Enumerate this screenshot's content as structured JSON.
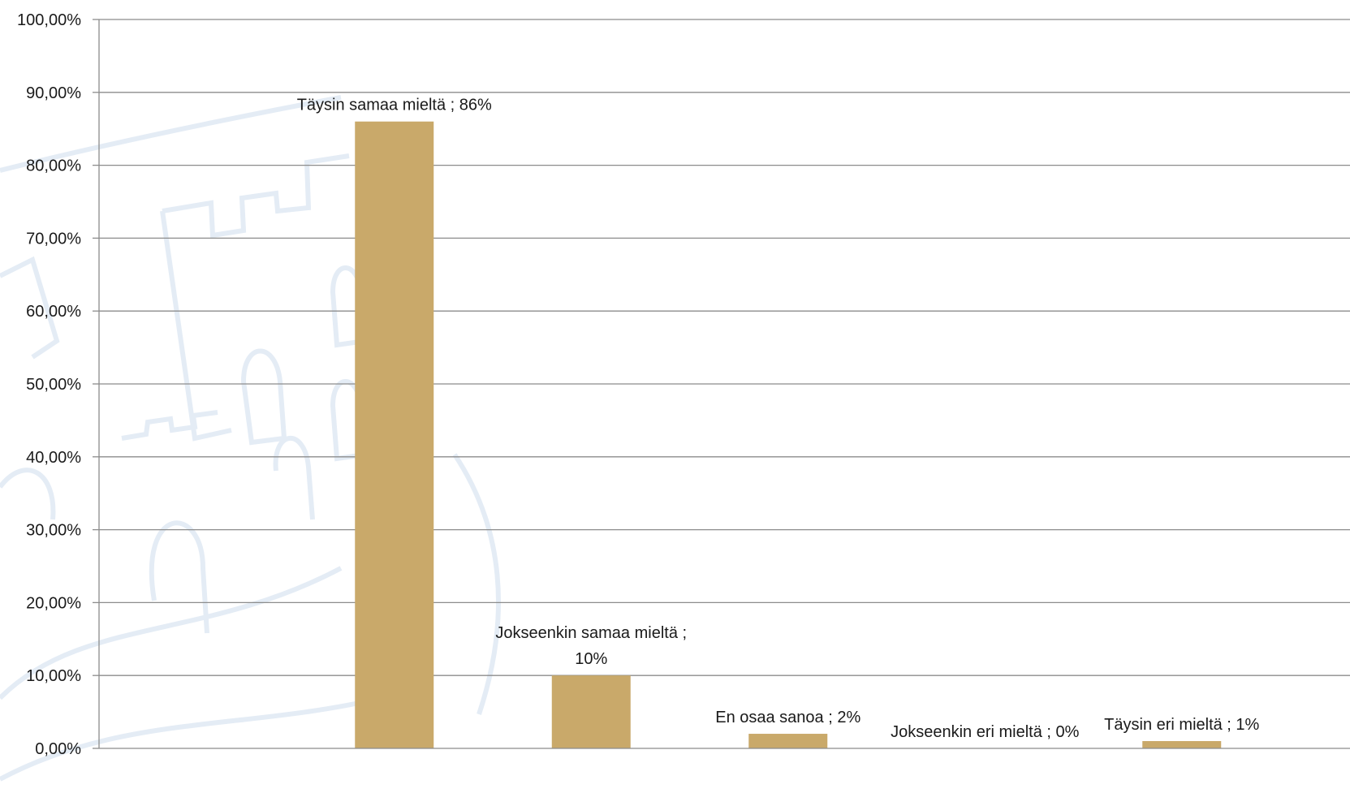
{
  "chart_data": {
    "type": "bar",
    "categories": [
      "",
      "Täysin samaa mieltä",
      "Jokseenkin samaa mieltä",
      "En osaa sanoa",
      "Jokseenkin eri mieltä",
      "Täysin eri mieltä"
    ],
    "values": [
      0,
      86,
      10,
      2,
      0,
      1
    ],
    "data_labels": [
      [],
      [
        "Täysin samaa mieltä ; 86%"
      ],
      [
        "Jokseenkin samaa mieltä ;",
        "10%"
      ],
      [
        "En osaa sanoa ; 2%"
      ],
      [
        "Jokseenkin eri mieltä ; 0%"
      ],
      [
        "Täysin eri mieltä ; 1%"
      ]
    ],
    "y_ticks": [
      "0,00%",
      "10,00%",
      "20,00%",
      "30,00%",
      "40,00%",
      "50,00%",
      "60,00%",
      "70,00%",
      "80,00%",
      "90,00%",
      "100,00%"
    ],
    "ylim": [
      0,
      100
    ],
    "grid": true,
    "title": "",
    "xlabel": "",
    "ylabel": "",
    "colors": {
      "bar": "#c9a96a",
      "grid": "#8c8c8c",
      "axis": "#8c8c8c"
    }
  }
}
